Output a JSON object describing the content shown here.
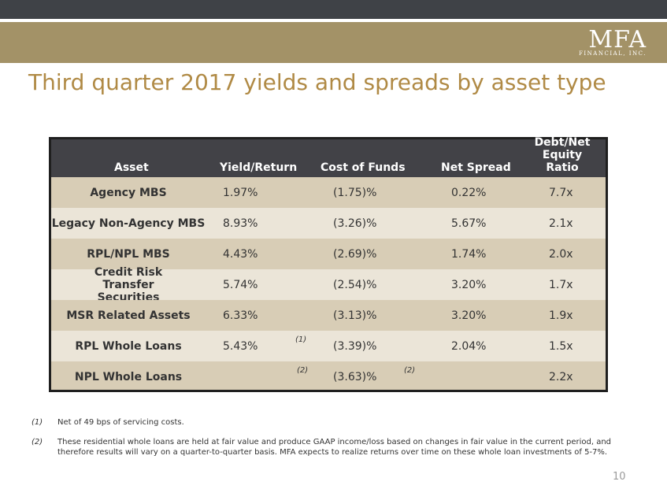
{
  "logo": {
    "mark": "MFA",
    "sub": "FINANCIAL, INC."
  },
  "title": "Third quarter 2017 yields and spreads by asset type",
  "table": {
    "headers": {
      "asset": "Asset",
      "yield": "Yield/Return",
      "cost": "Cost of Funds",
      "spread": "Net Spread",
      "debt_line1": "Debt/Net",
      "debt_line2": "Equity Ratio"
    },
    "rows": [
      {
        "asset": "Agency MBS",
        "yield": "1.97%",
        "cost": "(1.75)%",
        "spread": "0.22%",
        "debt": "7.7x"
      },
      {
        "asset": "Legacy Non-Agency MBS",
        "yield": "8.93%",
        "cost": "(3.26)%",
        "spread": "5.67%",
        "debt": "2.1x"
      },
      {
        "asset": "RPL/NPL MBS",
        "yield": "4.43%",
        "cost": "(2.69)%",
        "spread": "1.74%",
        "debt": "2.0x"
      },
      {
        "asset": "Credit Risk Transfer Securities",
        "yield": "5.74%",
        "cost": "(2.54)%",
        "spread": "3.20%",
        "debt": "1.7x"
      },
      {
        "asset": "MSR Related Assets",
        "yield": "6.33%",
        "cost": "(3.13)%",
        "spread": "3.20%",
        "debt": "1.9x"
      },
      {
        "asset": "RPL Whole Loans",
        "yield": "5.43%",
        "yield_note": "(1)",
        "cost": "(3.39)%",
        "spread": "2.04%",
        "debt": "1.5x"
      },
      {
        "asset": "NPL Whole Loans",
        "yield": "",
        "yield_note": "(2)",
        "cost": "(3.63)%",
        "spread_note": "(2)",
        "spread": "",
        "debt": "2.2x"
      }
    ]
  },
  "footnotes": [
    {
      "num": "(1)",
      "text": "Net of 49 bps of servicing costs."
    },
    {
      "num": "(2)",
      "text": "These residential whole loans are held at fair value and produce GAAP income/loss based on changes in fair value in the current period, and therefore results will vary on a quarter-to-quarter basis. MFA expects to realize returns over time on these whole loan investments of 5-7%."
    }
  ],
  "page_number": "10",
  "colors": {
    "gold": "#a39267",
    "title": "#b08a45",
    "dark_bar": "#3f4247",
    "header": "#424247",
    "row_shade": "#d8cdb6",
    "row_plain": "#ebe5d8"
  }
}
